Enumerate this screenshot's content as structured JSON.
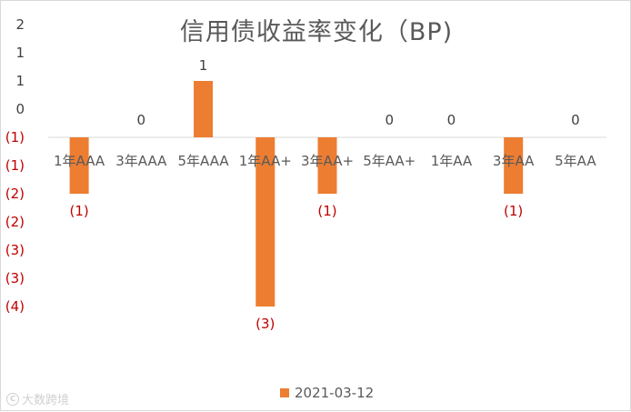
{
  "chart_data": {
    "type": "bar",
    "title": "信用债收益率变化（BP)",
    "categories": [
      "1年AAA",
      "3年AAA",
      "5年AAA",
      "1年AA+",
      "3年AA+",
      "5年AA+",
      "1年AA",
      "3年AA",
      "5年AA"
    ],
    "series": [
      {
        "name": "2021-03-12",
        "values": [
          -1,
          0,
          1,
          -3,
          -1,
          0,
          0,
          -1,
          0
        ],
        "data_labels": [
          "(1)",
          "0",
          "1",
          "(3)",
          "(1)",
          "0",
          "0",
          "(1)",
          "0"
        ]
      }
    ],
    "y_tick_labels": [
      "2",
      "1",
      "1",
      "0",
      "(1)",
      "(1)",
      "(2)",
      "(2)",
      "(3)",
      "(3)",
      "(4)"
    ],
    "ylim": [
      -3.5,
      1.5
    ],
    "grid": false,
    "legend_position": "bottom"
  },
  "colors": {
    "bar": "#ed7d31",
    "positive_text": "#404040",
    "negative_text": "#c00000",
    "axis_line": "#d9d9d9"
  },
  "watermark": {
    "text": "大数跨境",
    "icon": "copyright-logo-icon"
  }
}
